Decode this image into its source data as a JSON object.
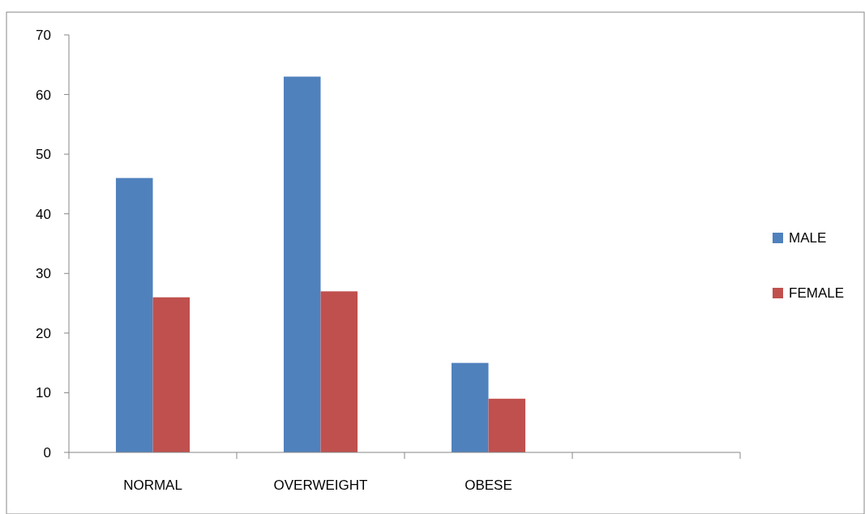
{
  "chart_data": {
    "type": "bar",
    "categories": [
      "NORMAL",
      "OVERWEIGHT",
      "OBESE",
      null
    ],
    "series": [
      {
        "name": "MALE",
        "color": "#4f81bd",
        "values": [
          46,
          63,
          15,
          null
        ]
      },
      {
        "name": "FEMALE",
        "color": "#c0504d",
        "values": [
          26,
          27,
          9,
          null
        ]
      }
    ],
    "ylim": [
      0,
      70
    ],
    "yticks": [
      0,
      10,
      20,
      30,
      40,
      50,
      60,
      70
    ],
    "grid": false,
    "legend": "right"
  }
}
